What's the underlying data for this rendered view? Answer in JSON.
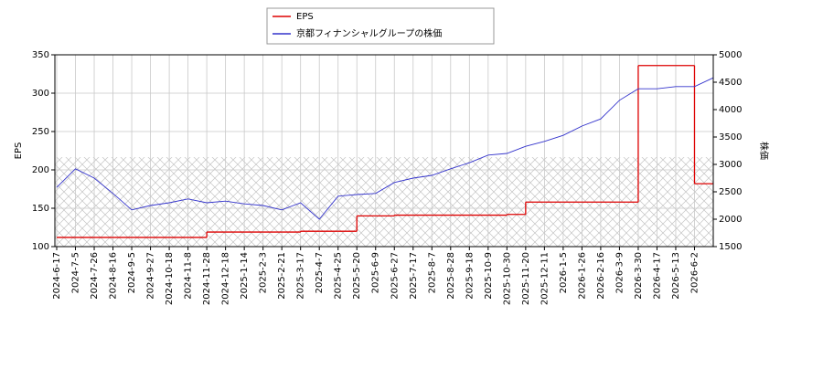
{
  "chart_data": {
    "type": "line",
    "ylabel": "EPS",
    "y2label": "株価",
    "categories": [
      "2024-6-17",
      "2024-7-5",
      "2024-7-26",
      "2024-8-16",
      "2024-9-5",
      "2024-9-27",
      "2024-10-18",
      "2024-11-8",
      "2024-11-28",
      "2024-12-18",
      "2025-1-14",
      "2025-2-3",
      "2025-2-21",
      "2025-3-17",
      "2025-4-7",
      "2025-4-25",
      "2025-5-20",
      "2025-6-9",
      "2025-6-27",
      "2025-7-17",
      "2025-8-7",
      "2025-8-28",
      "2025-9-18",
      "2025-10-9",
      "2025-10-30",
      "2025-11-20",
      "2025-12-11",
      "2026-1-5",
      "2026-1-26",
      "2026-2-16",
      "2026-3-9",
      "2026-3-30",
      "2026-4-17",
      "2026-5-13",
      "2026-6-2",
      null
    ],
    "series": [
      {
        "name": "EPS",
        "color": "#dd0000",
        "step": true,
        "values": [
          112,
          112,
          112,
          112,
          112,
          112,
          112,
          112,
          119,
          119,
          119,
          119,
          119,
          120,
          120,
          120,
          140,
          140,
          141,
          141,
          141,
          141,
          141,
          141,
          142,
          158,
          158,
          158,
          158,
          158,
          158,
          336,
          336,
          336,
          182,
          182
        ]
      },
      {
        "name": "京都フィナンシャルグループの株価",
        "color": "#3333cc",
        "axis": "y2",
        "values": [
          2580,
          2920,
          2750,
          2470,
          2170,
          2250,
          2300,
          2370,
          2300,
          2330,
          2280,
          2250,
          2170,
          2300,
          2000,
          2420,
          2450,
          2470,
          2670,
          2750,
          2800,
          2920,
          3030,
          3170,
          3200,
          3330,
          3420,
          3530,
          3700,
          3830,
          4170,
          4380,
          4380,
          4420,
          4420,
          4580
        ]
      }
    ],
    "ylim": [
      100,
      350
    ],
    "yticks": [
      100,
      150,
      200,
      250,
      300,
      350
    ],
    "y2lim": [
      1500,
      5000
    ],
    "y2ticks": [
      1500,
      2000,
      2500,
      3000,
      3500,
      4000,
      4500,
      5000
    ],
    "grid": true
  }
}
